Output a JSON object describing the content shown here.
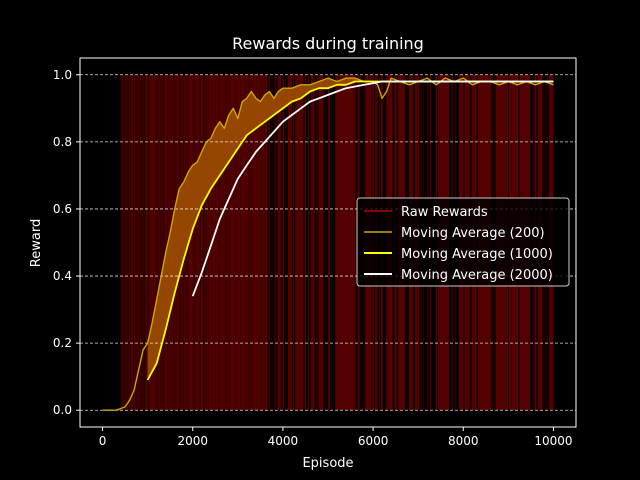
{
  "chart_data": {
    "type": "line",
    "title": "Rewards during training",
    "xlabel": "Episode",
    "ylabel": "Reward",
    "xlim": [
      -500,
      10500
    ],
    "ylim": [
      -0.05,
      1.05
    ],
    "x_ticks": [
      0,
      2000,
      4000,
      6000,
      8000,
      10000
    ],
    "y_ticks": [
      0.0,
      0.2,
      0.4,
      0.6,
      0.8,
      1.0
    ],
    "x_tick_labels": [
      "0",
      "2000",
      "4000",
      "6000",
      "8000",
      "10000"
    ],
    "y_tick_labels": [
      "0.0",
      "0.2",
      "0.4",
      "0.6",
      "0.8",
      "1.0"
    ],
    "grid": "horizontal-dashed",
    "legend_position": "center-right",
    "background": "#000000",
    "raw_rewards": {
      "name": "Raw Rewards",
      "color": "#8b0000",
      "values": "binary 0/1 per episode (0..10000); all 0 before ~400, then almost all 1 with sparse 0 episodes; sparse failures after ~3600"
    },
    "series": [
      {
        "name": "Moving Average (200)",
        "color": "#c8aa00",
        "x": [
          0,
          300,
          400,
          500,
          600,
          700,
          800,
          900,
          1000,
          1100,
          1200,
          1300,
          1400,
          1500,
          1600,
          1700,
          1800,
          1900,
          2000,
          2100,
          2200,
          2300,
          2400,
          2500,
          2600,
          2700,
          2800,
          2900,
          3000,
          3100,
          3200,
          3300,
          3400,
          3500,
          3600,
          3700,
          3800,
          3900,
          4000,
          4200,
          4400,
          4600,
          4800,
          5000,
          5200,
          5400,
          5600,
          5800,
          6000,
          6100,
          6200,
          6300,
          6400,
          6600,
          6800,
          7000,
          7200,
          7400,
          7600,
          7800,
          8000,
          8200,
          8400,
          8600,
          8800,
          9000,
          9200,
          9400,
          9600,
          9800,
          10000
        ],
        "y": [
          0.0,
          0.0,
          0.005,
          0.01,
          0.03,
          0.06,
          0.12,
          0.18,
          0.2,
          0.26,
          0.33,
          0.4,
          0.47,
          0.53,
          0.6,
          0.66,
          0.68,
          0.71,
          0.73,
          0.74,
          0.77,
          0.8,
          0.81,
          0.84,
          0.86,
          0.84,
          0.88,
          0.9,
          0.87,
          0.92,
          0.93,
          0.95,
          0.93,
          0.92,
          0.94,
          0.95,
          0.93,
          0.95,
          0.96,
          0.96,
          0.97,
          0.97,
          0.98,
          0.99,
          0.98,
          0.99,
          0.99,
          0.98,
          0.98,
          0.97,
          0.93,
          0.95,
          0.99,
          0.98,
          0.97,
          0.98,
          0.99,
          0.97,
          0.99,
          0.98,
          0.99,
          0.97,
          0.98,
          0.98,
          0.97,
          0.98,
          0.97,
          0.98,
          0.97,
          0.98,
          0.97
        ]
      },
      {
        "name": "Moving Average (1000)",
        "color": "#ffff00",
        "x": [
          1000,
          1200,
          1400,
          1600,
          1800,
          2000,
          2200,
          2400,
          2600,
          2800,
          3000,
          3200,
          3400,
          3600,
          3800,
          4000,
          4200,
          4400,
          4600,
          4800,
          5000,
          5200,
          5400,
          5600,
          5800,
          6000,
          6200,
          6400,
          6600,
          6800,
          7000,
          7500,
          8000,
          8500,
          9000,
          9500,
          10000
        ],
        "y": [
          0.09,
          0.14,
          0.24,
          0.35,
          0.45,
          0.54,
          0.61,
          0.66,
          0.7,
          0.74,
          0.78,
          0.82,
          0.84,
          0.86,
          0.88,
          0.9,
          0.92,
          0.93,
          0.95,
          0.96,
          0.96,
          0.97,
          0.97,
          0.98,
          0.98,
          0.98,
          0.98,
          0.98,
          0.98,
          0.98,
          0.98,
          0.98,
          0.98,
          0.98,
          0.98,
          0.98,
          0.98
        ]
      },
      {
        "name": "Moving Average (2000)",
        "color": "#ffffff",
        "x": [
          2000,
          2200,
          2400,
          2600,
          2800,
          3000,
          3200,
          3400,
          3600,
          3800,
          4000,
          4200,
          4400,
          4600,
          4800,
          5000,
          5200,
          5400,
          5600,
          5800,
          6000,
          6200,
          6500,
          7000,
          7500,
          8000,
          8500,
          9000,
          9500,
          10000
        ],
        "y": [
          0.34,
          0.41,
          0.49,
          0.57,
          0.63,
          0.69,
          0.73,
          0.77,
          0.8,
          0.83,
          0.86,
          0.88,
          0.9,
          0.92,
          0.93,
          0.94,
          0.95,
          0.96,
          0.965,
          0.97,
          0.975,
          0.98,
          0.98,
          0.98,
          0.98,
          0.98,
          0.98,
          0.98,
          0.98,
          0.98
        ]
      }
    ]
  }
}
